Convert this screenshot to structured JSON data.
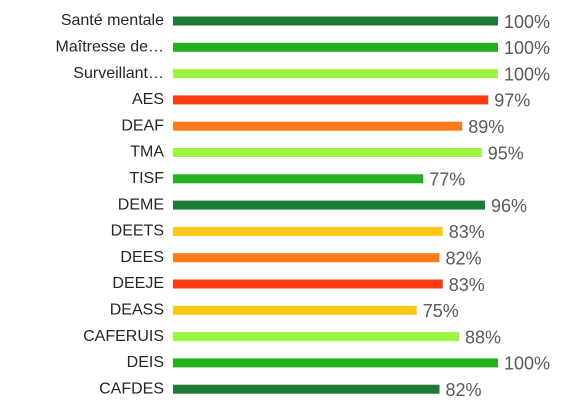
{
  "chart_data": {
    "type": "bar",
    "orientation": "horizontal",
    "categories": [
      "Santé mentale",
      "Maîtresse de…",
      "Surveillant…",
      "AES",
      "DEAF",
      "TMA",
      "TISF",
      "DEME",
      "DEETS",
      "DEES",
      "DEEJE",
      "DEASS",
      "CAFERUIS",
      "DEIS",
      "CAFDES"
    ],
    "values": [
      100,
      100,
      100,
      97,
      89,
      95,
      77,
      96,
      83,
      82,
      83,
      75,
      88,
      100,
      82
    ],
    "value_labels": [
      "100%",
      "100%",
      "100%",
      "97%",
      "89%",
      "95%",
      "77%",
      "96%",
      "83%",
      "82%",
      "83%",
      "75%",
      "88%",
      "100%",
      "82%"
    ],
    "colors": [
      "#1e7b34",
      "#22b11c",
      "#9cf542",
      "#ff3b0f",
      "#ff7b17",
      "#9cf542",
      "#22b11c",
      "#1e7b34",
      "#ffc61a",
      "#ff7b17",
      "#ff3b0f",
      "#ffc61a",
      "#9cf542",
      "#22b11c",
      "#1e7b34"
    ],
    "xlim": [
      0,
      100
    ]
  }
}
